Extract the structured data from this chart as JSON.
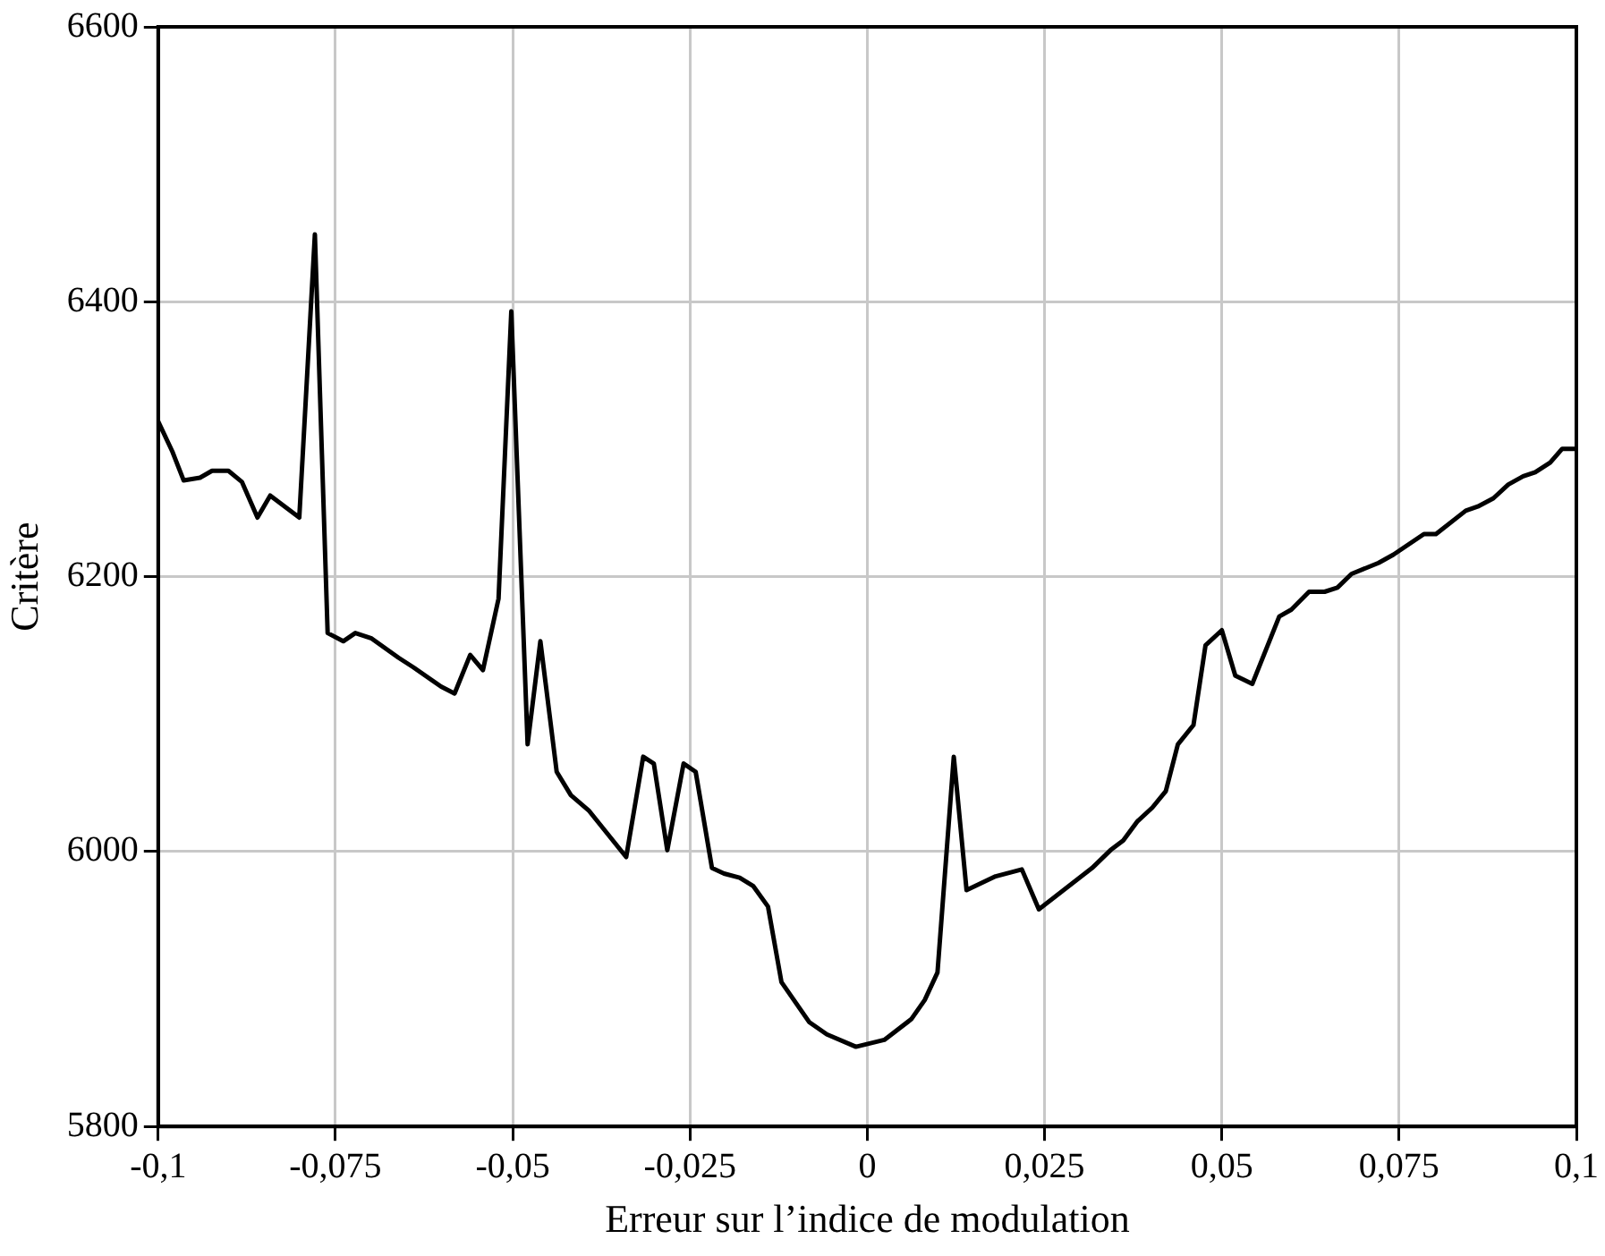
{
  "chart_data": {
    "type": "line",
    "xlabel": "Erreur sur l’indice de modulation",
    "ylabel": "Critère",
    "x": [
      -0.1,
      -0.098,
      -0.0964,
      -0.0941,
      -0.0924,
      -0.0901,
      -0.0882,
      -0.086,
      -0.0842,
      -0.0801,
      -0.0779,
      -0.0761,
      -0.0739,
      -0.0722,
      -0.0699,
      -0.0661,
      -0.064,
      -0.0601,
      -0.0582,
      -0.056,
      -0.0542,
      -0.052,
      -0.0502,
      -0.0479,
      -0.0461,
      -0.0438,
      -0.0418,
      -0.0393,
      -0.034,
      -0.0316,
      -0.0301,
      -0.0282,
      -0.0259,
      -0.0242,
      -0.0219,
      -0.0202,
      -0.018,
      -0.0161,
      -0.014,
      -0.0121,
      -0.0082,
      -0.0057,
      -0.0016,
      0.0024,
      0.0062,
      0.0081,
      0.0099,
      0.0122,
      0.014,
      0.0181,
      0.0218,
      0.0242,
      0.0317,
      0.0343,
      0.0361,
      0.0381,
      0.0402,
      0.0421,
      0.0438,
      0.046,
      0.0477,
      0.05,
      0.0519,
      0.0543,
      0.0581,
      0.0598,
      0.0623,
      0.0645,
      0.0663,
      0.0683,
      0.0721,
      0.0742,
      0.0785,
      0.0802,
      0.0844,
      0.0861,
      0.0883,
      0.0904,
      0.0925,
      0.0942,
      0.0963,
      0.098,
      0.1
    ],
    "series": [
      {
        "color": "#000000",
        "values": [
          6313,
          6291,
          6270,
          6272,
          6277,
          6277,
          6269,
          6243,
          6259,
          6243,
          6449,
          6159,
          6153,
          6159,
          6155,
          6141,
          6134,
          6120,
          6115,
          6143,
          6132,
          6184,
          6393,
          6078,
          6153,
          6058,
          6041,
          6030,
          5996,
          6069,
          6064,
          6001,
          6064,
          6058,
          5988,
          5984,
          5981,
          5975,
          5960,
          5905,
          5876,
          5867,
          5858,
          5863,
          5878,
          5892,
          5912,
          6069,
          5972,
          5982,
          5987,
          5958,
          5988,
          6001,
          6008,
          6022,
          6032,
          6044,
          6078,
          6092,
          6150,
          6161,
          6128,
          6122,
          6171,
          6176,
          6189,
          6189,
          6192,
          6202,
          6210,
          6216,
          6231,
          6231,
          6248,
          6251,
          6257,
          6267,
          6273,
          6276,
          6283,
          6293,
          6293
        ]
      }
    ],
    "xlim": [
      -0.1,
      0.1
    ],
    "xticks": [
      {
        "value": -0.1,
        "label": "-0,1"
      },
      {
        "value": -0.075,
        "label": "-0,075"
      },
      {
        "value": -0.05,
        "label": "-0,05"
      },
      {
        "value": -0.025,
        "label": "-0,025"
      },
      0,
      {
        "value": 0.025,
        "label": "0,025"
      },
      {
        "value": 0.05,
        "label": "0,05"
      },
      {
        "value": 0.075,
        "label": "0,075"
      },
      {
        "value": 0.1,
        "label": "0,1"
      }
    ],
    "ylim": [
      5800,
      6600
    ],
    "yticks": [
      5800,
      6000,
      6200,
      6400,
      6600
    ],
    "grid": true,
    "legend": false,
    "marker": "none",
    "line_style": "solid"
  }
}
